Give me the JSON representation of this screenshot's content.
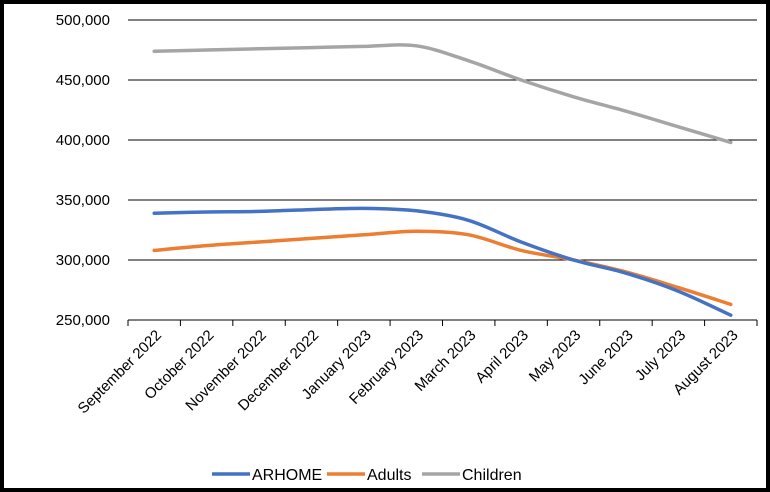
{
  "chart_data": {
    "type": "line",
    "title": "",
    "xlabel": "",
    "ylabel": "",
    "categories": [
      "September 2022",
      "October 2022",
      "November 2022",
      "December 2022",
      "January 2023",
      "February 2023",
      "March 2023",
      "April 2023",
      "May 2023",
      "June 2023",
      "July 2023",
      "August 2023"
    ],
    "ylim": [
      250000,
      500000
    ],
    "yticks": [
      250000,
      300000,
      350000,
      400000,
      450000,
      500000
    ],
    "ytick_labels": [
      "250,000",
      "300,000",
      "350,000",
      "400,000",
      "450,000",
      "500,000"
    ],
    "grid": "horizontal",
    "legend_position": "bottom",
    "series": [
      {
        "name": "ARHOME",
        "color": "#4472C4",
        "values": [
          339000,
          340000,
          340500,
          342000,
          343000,
          341000,
          333000,
          315000,
          300000,
          289000,
          274000,
          254000
        ]
      },
      {
        "name": "Adults",
        "color": "#ED7D31",
        "values": [
          308000,
          312000,
          315000,
          318000,
          321000,
          324000,
          321000,
          308000,
          300000,
          290000,
          277000,
          263000
        ]
      },
      {
        "name": "Children",
        "color": "#A5A5A5",
        "values": [
          474000,
          475000,
          476000,
          477000,
          478000,
          478500,
          466000,
          450000,
          436000,
          424000,
          411000,
          398000
        ]
      }
    ]
  }
}
